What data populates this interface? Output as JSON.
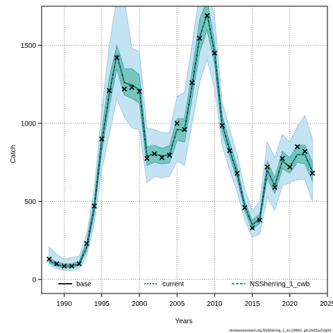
{
  "chart_data": {
    "type": "line",
    "title": "",
    "xlabel": "Years",
    "ylabel": "Catch",
    "xlim": [
      1987,
      2025
    ],
    "ylim": [
      -90,
      1750
    ],
    "xticks": [
      1990,
      1995,
      2000,
      2005,
      2010,
      2015,
      2020,
      2025
    ],
    "yticks": [
      0,
      500,
      1000,
      1500
    ],
    "grid": true,
    "legend_position": "bottom",
    "footnote": "stockassessment.org,NSSherring_1_sn,r18653, git:c9c81ac53a0d",
    "colors": {
      "outer_band": "#c3e3f3",
      "outer_band_stroke": "#8fc2dd",
      "inner_band": "#74c6bf",
      "inner_band_stroke": "#3e9c95",
      "base": "#000000",
      "current": "#1b4f8a",
      "cwb": "#1a8a7d",
      "observed_marker": "#000000",
      "grid": "#555555"
    },
    "series": [
      {
        "name": "base",
        "years": [
          1988,
          1989,
          1990,
          1991,
          1992,
          1993,
          1994,
          1995,
          1996,
          1997,
          1998,
          1999,
          2000,
          2001,
          2002,
          2003,
          2004,
          2005,
          2006,
          2007,
          2008,
          2009,
          2010,
          2011,
          2012,
          2013,
          2014,
          2015,
          2016,
          2017,
          2018,
          2019,
          2020,
          2021,
          2022,
          2023
        ],
        "values": [
          120,
          95,
          85,
          85,
          100,
          210,
          460,
          880,
          1190,
          1440,
          1260,
          1245,
          1215,
          790,
          805,
          790,
          800,
          960,
          955,
          1240,
          1550,
          1700,
          1450,
          995,
          830,
          680,
          470,
          350,
          390,
          700,
          600,
          760,
          720,
          800,
          800,
          690
        ]
      },
      {
        "name": "current",
        "years": [
          1988,
          1989,
          1990,
          1991,
          1992,
          1993,
          1994,
          1995,
          1996,
          1997,
          1998,
          1999,
          2000,
          2001,
          2002,
          2003,
          2004,
          2005,
          2006,
          2007,
          2008,
          2009,
          2010,
          2011,
          2012,
          2013,
          2014,
          2015,
          2016,
          2017,
          2018,
          2019,
          2020,
          2021,
          2022,
          2023
        ],
        "values": [
          120,
          95,
          85,
          85,
          100,
          210,
          460,
          880,
          1190,
          1440,
          1260,
          1245,
          1215,
          790,
          805,
          790,
          800,
          960,
          955,
          1240,
          1550,
          1700,
          1450,
          995,
          830,
          680,
          470,
          350,
          390,
          700,
          600,
          760,
          720,
          800,
          800,
          690
        ]
      },
      {
        "name": "NSSherring_1_cwb",
        "years": [
          1988,
          1989,
          1990,
          1991,
          1992,
          1993,
          1994,
          1995,
          1996,
          1997,
          1998,
          1999,
          2000,
          2001,
          2002,
          2003,
          2004,
          2005,
          2006,
          2007,
          2008,
          2009,
          2010,
          2011,
          2012,
          2013,
          2014,
          2015,
          2016,
          2017,
          2018,
          2019,
          2020,
          2021,
          2022,
          2023
        ],
        "values": [
          120,
          95,
          85,
          85,
          100,
          210,
          460,
          880,
          1190,
          1440,
          1260,
          1245,
          1215,
          790,
          805,
          790,
          800,
          960,
          955,
          1240,
          1550,
          1700,
          1450,
          995,
          830,
          680,
          470,
          350,
          390,
          700,
          600,
          760,
          720,
          800,
          800,
          690
        ]
      }
    ],
    "outer_band": {
      "lower": [
        90,
        70,
        60,
        55,
        70,
        150,
        360,
        700,
        930,
        1160,
        1040,
        970,
        960,
        620,
        660,
        650,
        660,
        760,
        730,
        1000,
        1260,
        1410,
        1220,
        860,
        700,
        560,
        380,
        270,
        290,
        530,
        440,
        600,
        620,
        640,
        640,
        500
      ],
      "upper": [
        210,
        160,
        130,
        140,
        150,
        290,
        580,
        1080,
        1500,
        1800,
        1800,
        1480,
        1460,
        970,
        960,
        940,
        940,
        1170,
        1200,
        1500,
        1840,
        1880,
        1680,
        1140,
        960,
        800,
        580,
        440,
        500,
        880,
        780,
        930,
        880,
        980,
        1050,
        900
      ]
    },
    "inner_band": {
      "lower": [
        105,
        85,
        75,
        75,
        90,
        185,
        420,
        820,
        1110,
        1350,
        1180,
        1160,
        1130,
        730,
        750,
        740,
        745,
        890,
        880,
        1160,
        1450,
        1600,
        1380,
        940,
        790,
        640,
        440,
        320,
        360,
        650,
        550,
        710,
        680,
        750,
        740,
        630
      ],
      "upper": [
        140,
        110,
        100,
        100,
        115,
        245,
        510,
        950,
        1290,
        1500,
        1350,
        1350,
        1310,
        850,
        860,
        840,
        855,
        1030,
        1030,
        1330,
        1660,
        1790,
        1520,
        1050,
        880,
        720,
        500,
        380,
        420,
        760,
        650,
        820,
        780,
        860,
        860,
        750
      ]
    },
    "observed": {
      "years": [
        1988,
        1989,
        1990,
        1991,
        1992,
        1993,
        1994,
        1995,
        1996,
        1997,
        1998,
        1999,
        2000,
        2001,
        2002,
        2003,
        2004,
        2005,
        2006,
        2007,
        2008,
        2009,
        2010,
        2011,
        2012,
        2013,
        2014,
        2015,
        2016,
        2017,
        2018,
        2019,
        2020,
        2021,
        2022,
        2023
      ],
      "values": [
        130,
        100,
        85,
        85,
        100,
        230,
        470,
        900,
        1210,
        1420,
        1220,
        1230,
        1205,
        775,
        805,
        780,
        795,
        1000,
        960,
        1260,
        1545,
        1690,
        1450,
        985,
        825,
        680,
        460,
        330,
        380,
        720,
        590,
        775,
        720,
        850,
        820,
        680
      ]
    }
  }
}
